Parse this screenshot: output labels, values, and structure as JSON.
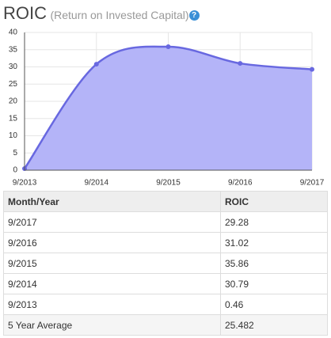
{
  "title": "ROIC",
  "subtitle": "(Return on Invested Capital)",
  "help_icon": "?",
  "chart_data": {
    "type": "area",
    "x": [
      "9/2013",
      "9/2014",
      "9/2015",
      "9/2016",
      "9/2017"
    ],
    "values": [
      0.46,
      30.79,
      35.86,
      31.02,
      29.28
    ],
    "color": "#6868e0",
    "fill": "#b4b4f8",
    "ylim": [
      0,
      40
    ],
    "yticks": [
      0,
      5,
      10,
      15,
      20,
      25,
      30,
      35,
      40
    ],
    "grid": true
  },
  "table": {
    "headers": [
      "Month/Year",
      "ROIC"
    ],
    "footer": [
      "5 Year Average",
      "25.482"
    ]
  }
}
